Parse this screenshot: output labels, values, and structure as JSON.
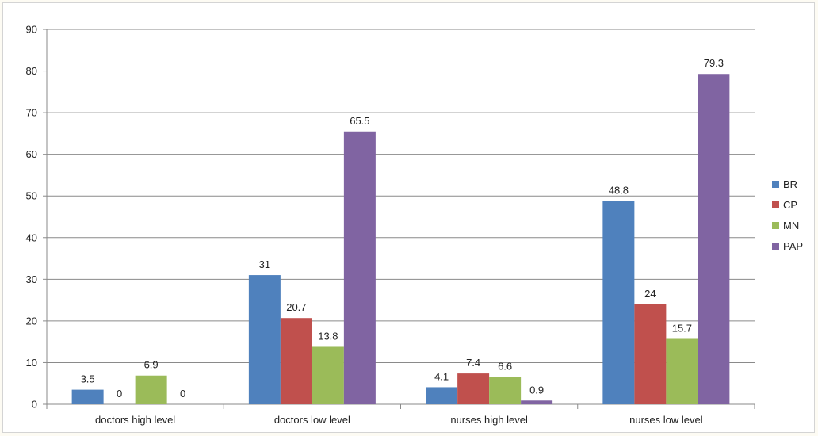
{
  "chart_data": {
    "type": "bar",
    "categories": [
      "doctors high level",
      "doctors low level",
      "nurses high level",
      "nurses low level"
    ],
    "series": [
      {
        "name": "BR",
        "values": [
          3.5,
          31,
          4.1,
          48.8
        ],
        "color": "#4f81bd"
      },
      {
        "name": "CP",
        "values": [
          0,
          20.7,
          7.4,
          24
        ],
        "color": "#c0504d"
      },
      {
        "name": "MN",
        "values": [
          6.9,
          13.8,
          6.6,
          15.7
        ],
        "color": "#9bbb59"
      },
      {
        "name": "PAP",
        "values": [
          0,
          65.5,
          0.9,
          79.3
        ],
        "color": "#8064a2"
      }
    ],
    "ylim": [
      0,
      90
    ],
    "yticks": [
      0,
      10,
      20,
      30,
      40,
      50,
      60,
      70,
      80,
      90
    ],
    "grid": true,
    "legend_position": "right",
    "data_labels": true
  }
}
